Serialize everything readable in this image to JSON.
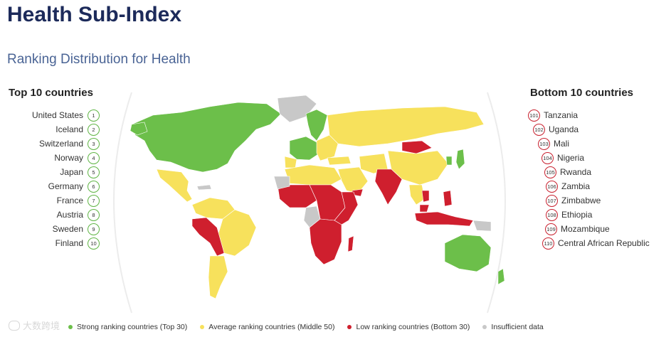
{
  "header": {
    "title": "Health Sub-Index",
    "subtitle": "Ranking Distribution for Health"
  },
  "top10": {
    "heading": "Top 10 countries",
    "items": [
      {
        "name": "United States",
        "rank": "1"
      },
      {
        "name": "Iceland",
        "rank": "2"
      },
      {
        "name": "Switzerland",
        "rank": "3"
      },
      {
        "name": "Norway",
        "rank": "4"
      },
      {
        "name": "Japan",
        "rank": "5"
      },
      {
        "name": "Germany",
        "rank": "6"
      },
      {
        "name": "France",
        "rank": "7"
      },
      {
        "name": "Austria",
        "rank": "8"
      },
      {
        "name": "Sweden",
        "rank": "9"
      },
      {
        "name": "Finland",
        "rank": "10"
      }
    ]
  },
  "bottom10": {
    "heading": "Bottom 10 countries",
    "items": [
      {
        "name": "Tanzania",
        "rank": "101"
      },
      {
        "name": "Uganda",
        "rank": "102"
      },
      {
        "name": "Mali",
        "rank": "103"
      },
      {
        "name": "Nigeria",
        "rank": "104"
      },
      {
        "name": "Rwanda",
        "rank": "105"
      },
      {
        "name": "Zambia",
        "rank": "106"
      },
      {
        "name": "Zimbabwe",
        "rank": "107"
      },
      {
        "name": "Ethiopia",
        "rank": "108"
      },
      {
        "name": "Mozambique",
        "rank": "109"
      },
      {
        "name": "Central African Republic",
        "rank": "110"
      }
    ]
  },
  "legend": [
    {
      "label": "Strong ranking countries (Top 30)",
      "color": "#6cbf4a"
    },
    {
      "label": "Average ranking countries (Middle 50)",
      "color": "#f7e15c"
    },
    {
      "label": "Low ranking countries (Bottom 30)",
      "color": "#cf1f2e"
    },
    {
      "label": "Insufficient data",
      "color": "#c8c8c8"
    }
  ],
  "colors": {
    "strong": "#6cbf4a",
    "average": "#f7e15c",
    "low": "#cf1f2e",
    "nodata": "#c8c8c8",
    "title": "#1c2a5a",
    "subtitle": "#4a6495"
  },
  "watermark": {
    "text": "大数跨境"
  }
}
